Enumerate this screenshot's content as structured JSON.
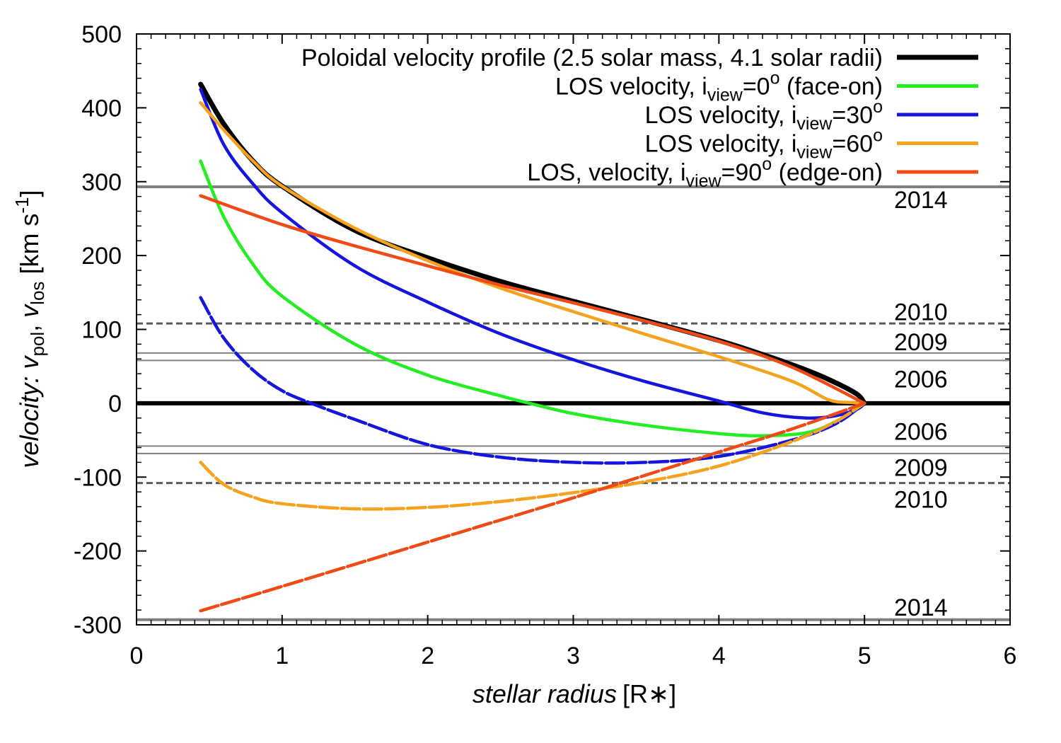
{
  "chart_data": {
    "type": "line",
    "xlabel_italic": "stellar radius",
    "xlabel_unit": "[R∗]",
    "ylabel": {
      "prefix": "velocity: ",
      "v1": "v",
      "v1_sub": "pol",
      "sep": ", ",
      "v2": "v",
      "v2_sub": "los",
      "unit_pre": " [km s",
      "unit_sup": "-1",
      "unit_post": "]"
    },
    "xlim": [
      0,
      6
    ],
    "ylim": [
      -300,
      500
    ],
    "xticks": [
      0,
      1,
      2,
      3,
      4,
      5,
      6
    ],
    "yticks": [
      500,
      400,
      300,
      200,
      100,
      0,
      -100,
      -200,
      -300
    ],
    "legend": [
      {
        "id": "pol",
        "color": "#000000",
        "parts": [
          {
            "t": "Poloidal velocity profile (2.5 solar mass, 4.1 solar radii)"
          }
        ]
      },
      {
        "id": "i0",
        "color": "#22ee22",
        "parts": [
          {
            "t": "LOS velocity, i"
          },
          {
            "t": "view",
            "sub": true
          },
          {
            "t": "=0"
          },
          {
            "t": "o",
            "sup": true
          },
          {
            "t": " (face-on)"
          }
        ]
      },
      {
        "id": "i30",
        "color": "#1515dd",
        "parts": [
          {
            "t": "LOS velocity, i"
          },
          {
            "t": "view",
            "sub": true
          },
          {
            "t": "=30"
          },
          {
            "t": "o",
            "sup": true
          }
        ]
      },
      {
        "id": "i60",
        "color": "#f5a21e",
        "parts": [
          {
            "t": "LOS velocity, i"
          },
          {
            "t": "view",
            "sub": true
          },
          {
            "t": "=60"
          },
          {
            "t": "o",
            "sup": true
          }
        ]
      },
      {
        "id": "i90",
        "color": "#f04b14",
        "parts": [
          {
            "t": "LOS, velocity, i"
          },
          {
            "t": "view",
            "sub": true
          },
          {
            "t": "=90"
          },
          {
            "t": "o",
            "sup": true
          },
          {
            "t": " (edge-on)"
          }
        ]
      }
    ],
    "series": [
      {
        "id": "pol",
        "name": "Poloidal velocity profile",
        "color": "#000000",
        "width": 7,
        "x": [
          0.44,
          0.6,
          0.8,
          1.0,
          1.5,
          2.0,
          2.5,
          3.0,
          3.5,
          4.0,
          4.3,
          4.6,
          4.8,
          4.95,
          5.0
        ],
        "y": [
          432,
          378,
          328,
          294,
          234,
          197,
          165,
          138,
          112,
          85,
          66,
          45,
          28,
          12,
          0
        ]
      },
      {
        "id": "i0",
        "name": "LOS velocity, i=0 (face-on)",
        "color": "#22ee22",
        "width": 4.5,
        "x": [
          0.44,
          0.6,
          0.8,
          1.0,
          1.5,
          2.0,
          2.5,
          2.7,
          3.0,
          3.5,
          4.0,
          4.3,
          4.6,
          4.8,
          5.0
        ],
        "y": [
          328,
          252,
          188,
          145,
          80,
          38,
          10,
          0,
          -14,
          -30,
          -41,
          -44,
          -40,
          -25,
          0
        ]
      },
      {
        "id": "i30",
        "name": "LOS velocity, i=30 (upper)",
        "color": "#1515dd",
        "width": 4.5,
        "x": [
          0.44,
          0.6,
          0.8,
          1.0,
          1.5,
          2.0,
          2.5,
          3.0,
          3.5,
          4.0,
          4.3,
          4.6,
          4.8,
          4.95,
          5.0
        ],
        "y": [
          425,
          350,
          297,
          258,
          186,
          137,
          94,
          59,
          29,
          3,
          -13,
          -20,
          -17,
          -8,
          0
        ]
      },
      {
        "id": "i30b",
        "name": "LOS velocity, i=30 (lower)",
        "color": "#1515dd",
        "width": 4.5,
        "dash": "26 5",
        "x": [
          0.44,
          0.6,
          0.8,
          1.0,
          1.2,
          1.5,
          2.0,
          2.5,
          3.0,
          3.5,
          4.0,
          4.5,
          4.8,
          5.0
        ],
        "y": [
          143,
          88,
          45,
          17,
          0,
          -22,
          -56,
          -73,
          -80,
          -80,
          -72,
          -50,
          -28,
          0
        ]
      },
      {
        "id": "i60",
        "name": "LOS velocity, i=60 (upper)",
        "color": "#f5a21e",
        "width": 4.5,
        "x": [
          0.44,
          0.6,
          0.8,
          1.0,
          1.5,
          2.0,
          2.5,
          3.0,
          3.5,
          4.0,
          4.5,
          4.75,
          4.9,
          5.0
        ],
        "y": [
          407,
          370,
          328,
          294,
          237,
          193,
          156,
          124,
          93,
          63,
          30,
          5,
          1,
          0
        ]
      },
      {
        "id": "i60b",
        "name": "LOS velocity, i=60 (lower)",
        "color": "#f5a21e",
        "width": 4.5,
        "dash": "26 5",
        "x": [
          0.44,
          0.6,
          0.8,
          1.0,
          1.5,
          2.0,
          2.5,
          3.0,
          3.5,
          4.0,
          4.5,
          4.8,
          5.0
        ],
        "y": [
          -80,
          -110,
          -127,
          -136,
          -143,
          -141,
          -133,
          -121,
          -106,
          -85,
          -52,
          -25,
          0
        ]
      },
      {
        "id": "i90",
        "name": "LOS velocity, i=90 (upper)",
        "color": "#f04b14",
        "width": 4.5,
        "x": [
          0.44,
          1.0,
          1.5,
          2.0,
          2.5,
          3.0,
          3.5,
          4.0,
          4.5,
          5.0
        ],
        "y": [
          281,
          242,
          213,
          186,
          160,
          136,
          111,
          84,
          49,
          0
        ]
      },
      {
        "id": "i90b",
        "name": "LOS velocity, i=90 (lower)",
        "color": "#f04b14",
        "width": 4.5,
        "dash": "26 5",
        "x": [
          0.44,
          1.0,
          2.0,
          3.0,
          4.0,
          4.5,
          5.0
        ],
        "y": [
          -281,
          -248,
          -188,
          -128,
          -66,
          -35,
          0
        ]
      }
    ],
    "reference_lines": [
      {
        "y": 293,
        "label": "2014",
        "label_y": 276,
        "style": "thick"
      },
      {
        "y": 108,
        "label": "2010",
        "label_y": 124,
        "style": "dashed"
      },
      {
        "y": 68,
        "label": "2009",
        "label_y": 83,
        "style": "thin"
      },
      {
        "y": 58,
        "label": "2006",
        "label_y": 33,
        "style": "thin"
      },
      {
        "y": 0,
        "label": "",
        "label_y": 0,
        "style": "zero"
      },
      {
        "y": -58,
        "label": "2006",
        "label_y": -38,
        "style": "thin"
      },
      {
        "y": -68,
        "label": "2009",
        "label_y": -87,
        "style": "thin"
      },
      {
        "y": -108,
        "label": "2010",
        "label_y": -130,
        "style": "dashed"
      },
      {
        "y": -293,
        "label": "2014",
        "label_y": -276,
        "style": "thick"
      }
    ]
  }
}
